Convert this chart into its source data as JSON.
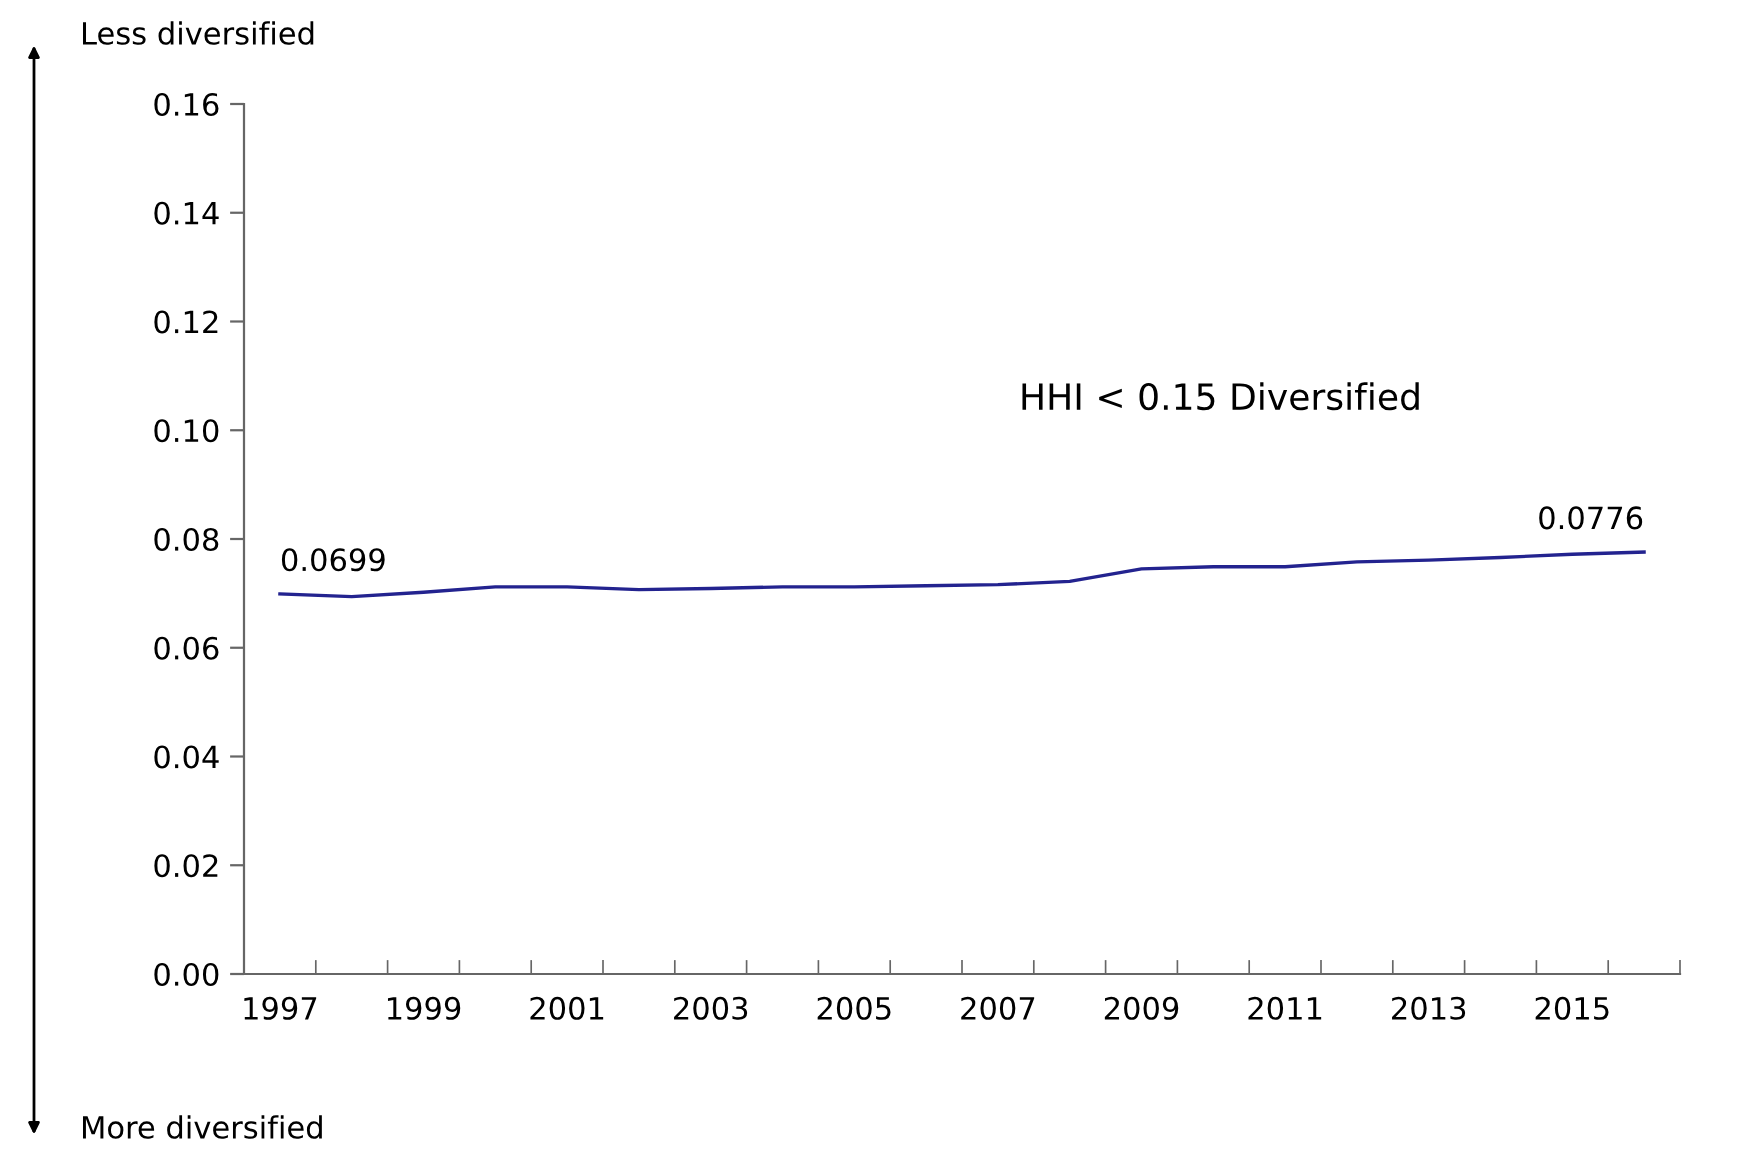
{
  "chart_data": {
    "type": "line",
    "categories": [
      "1997",
      null,
      "1999",
      null,
      "2001",
      null,
      "2003",
      null,
      "2005",
      null,
      "2007",
      null,
      "2009",
      null,
      "2011",
      null,
      "2013",
      null,
      "2015",
      null
    ],
    "series": [
      {
        "color": "#23238f",
        "values": [
          0.0699,
          0.0694,
          0.0702,
          0.0712,
          0.0712,
          0.0707,
          0.0709,
          0.0712,
          0.0712,
          0.0714,
          0.0716,
          0.0722,
          0.0745,
          0.0749,
          0.0749,
          0.0758,
          0.0761,
          0.0766,
          0.0772,
          0.0776
        ],
        "value_labels": [
          "0.0699",
          null,
          null,
          null,
          null,
          null,
          null,
          null,
          null,
          null,
          null,
          null,
          null,
          null,
          null,
          null,
          null,
          null,
          null,
          "0.0776"
        ]
      }
    ],
    "ylim": [
      0,
      0.16
    ],
    "yticks": [
      {
        "value": 0,
        "label": "0.00"
      },
      {
        "value": 0.02,
        "label": "0.02"
      },
      {
        "value": 0.04,
        "label": "0.04"
      },
      {
        "value": 0.06,
        "label": "0.06"
      },
      {
        "value": 0.08,
        "label": "0.08"
      },
      {
        "value": 0.1,
        "label": "0.10"
      },
      {
        "value": 0.12,
        "label": "0.12"
      },
      {
        "value": 0.14,
        "label": "0.14"
      },
      {
        "value": 0.16,
        "label": "0.16"
      }
    ],
    "annotations": [
      "Less diversified",
      "More diversified",
      "HHI < 0.15 Diversified"
    ],
    "grid": false,
    "legend": false
  }
}
